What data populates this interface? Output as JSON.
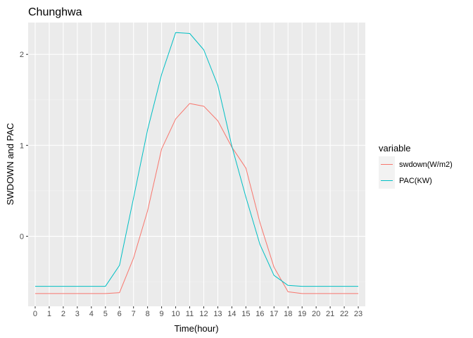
{
  "chart_data": {
    "type": "line",
    "title": "Chunghwa",
    "xlabel": "Time(hour)",
    "ylabel": "SWDOWN and PAC",
    "x": [
      0,
      1,
      2,
      3,
      4,
      5,
      6,
      7,
      8,
      9,
      10,
      11,
      12,
      13,
      14,
      15,
      16,
      17,
      18,
      19,
      20,
      21,
      22,
      23
    ],
    "xlim": [
      -0.5,
      23.5
    ],
    "ylim": [
      -0.77,
      2.35
    ],
    "yticks": [
      0,
      1,
      2
    ],
    "grid": true,
    "legend": {
      "title": "variable",
      "placement": "right"
    },
    "series": [
      {
        "name": "swdown(W/m2)",
        "color": "#F8766D",
        "values": [
          -0.63,
          -0.63,
          -0.63,
          -0.63,
          -0.63,
          -0.63,
          -0.62,
          -0.24,
          0.28,
          0.96,
          1.29,
          1.46,
          1.43,
          1.27,
          0.98,
          0.75,
          0.15,
          -0.34,
          -0.61,
          -0.63,
          -0.63,
          -0.63,
          -0.63,
          -0.63
        ]
      },
      {
        "name": "PAC(KW)",
        "color": "#00BFC4",
        "values": [
          -0.55,
          -0.55,
          -0.55,
          -0.55,
          -0.55,
          -0.55,
          -0.32,
          0.42,
          1.17,
          1.78,
          2.24,
          2.23,
          2.05,
          1.66,
          0.99,
          0.43,
          -0.09,
          -0.43,
          -0.54,
          -0.55,
          -0.55,
          -0.55,
          -0.55,
          -0.55
        ]
      }
    ]
  }
}
